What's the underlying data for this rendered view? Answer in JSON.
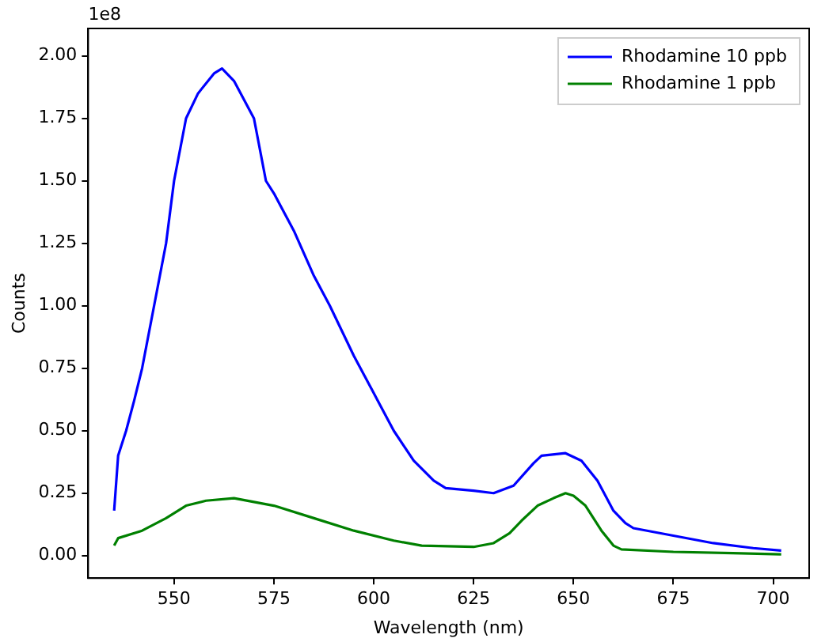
{
  "chart_data": {
    "type": "line",
    "xlabel": "Wavelength (nm)",
    "ylabel": "Counts",
    "annotations": [
      "1e8"
    ],
    "xlim": [
      528.5,
      709
    ],
    "ylim": [
      -0.09,
      2.11
    ],
    "xticks": [
      550,
      575,
      600,
      625,
      650,
      675,
      700
    ],
    "yticks": [
      {
        "value": 0,
        "label": "0.00"
      },
      {
        "value": 0.25,
        "label": "0.25"
      },
      {
        "value": 0.5,
        "label": "0.50"
      },
      {
        "value": 0.75,
        "label": "0.75"
      },
      {
        "value": 1,
        "label": "1.00"
      },
      {
        "value": 1.25,
        "label": "1.25"
      },
      {
        "value": 1.5,
        "label": "1.50"
      },
      {
        "value": 1.75,
        "label": "1.75"
      },
      {
        "value": 2,
        "label": "2.00"
      }
    ],
    "grid": false,
    "legend": "top right",
    "marker": "none",
    "line_style": "solid",
    "series": [
      {
        "name": "Rhodamine 10 ppb",
        "color": "#0000ff",
        "x": [
          535,
          536,
          538,
          540,
          542,
          545,
          548,
          550,
          553,
          556,
          560,
          562,
          565,
          570,
          573,
          575,
          580,
          585,
          589,
          595,
          600,
          605,
          610,
          615,
          618,
          625,
          630,
          635,
          640,
          642,
          648,
          652,
          656,
          660,
          663,
          665,
          675,
          685,
          695,
          702
        ],
        "values": [
          0.18,
          0.4,
          0.5,
          0.62,
          0.75,
          1.0,
          1.25,
          1.5,
          1.75,
          1.85,
          1.93,
          1.95,
          1.9,
          1.75,
          1.5,
          1.45,
          1.3,
          1.12,
          1.0,
          0.8,
          0.65,
          0.5,
          0.38,
          0.3,
          0.27,
          0.26,
          0.25,
          0.28,
          0.37,
          0.4,
          0.41,
          0.38,
          0.3,
          0.18,
          0.13,
          0.11,
          0.08,
          0.05,
          0.03,
          0.02
        ]
      },
      {
        "name": "Rhodamine 1 ppb",
        "color": "#008000",
        "x": [
          535,
          536,
          542,
          548,
          553,
          558,
          565,
          575,
          585,
          595,
          605,
          612,
          625,
          630,
          634,
          637,
          641,
          645,
          648,
          650,
          653,
          657,
          660,
          662,
          675,
          690,
          702
        ],
        "values": [
          0.04,
          0.07,
          0.1,
          0.15,
          0.2,
          0.22,
          0.23,
          0.2,
          0.15,
          0.1,
          0.06,
          0.04,
          0.035,
          0.05,
          0.09,
          0.14,
          0.2,
          0.23,
          0.25,
          0.24,
          0.2,
          0.1,
          0.04,
          0.025,
          0.015,
          0.01,
          0.005
        ]
      }
    ]
  }
}
